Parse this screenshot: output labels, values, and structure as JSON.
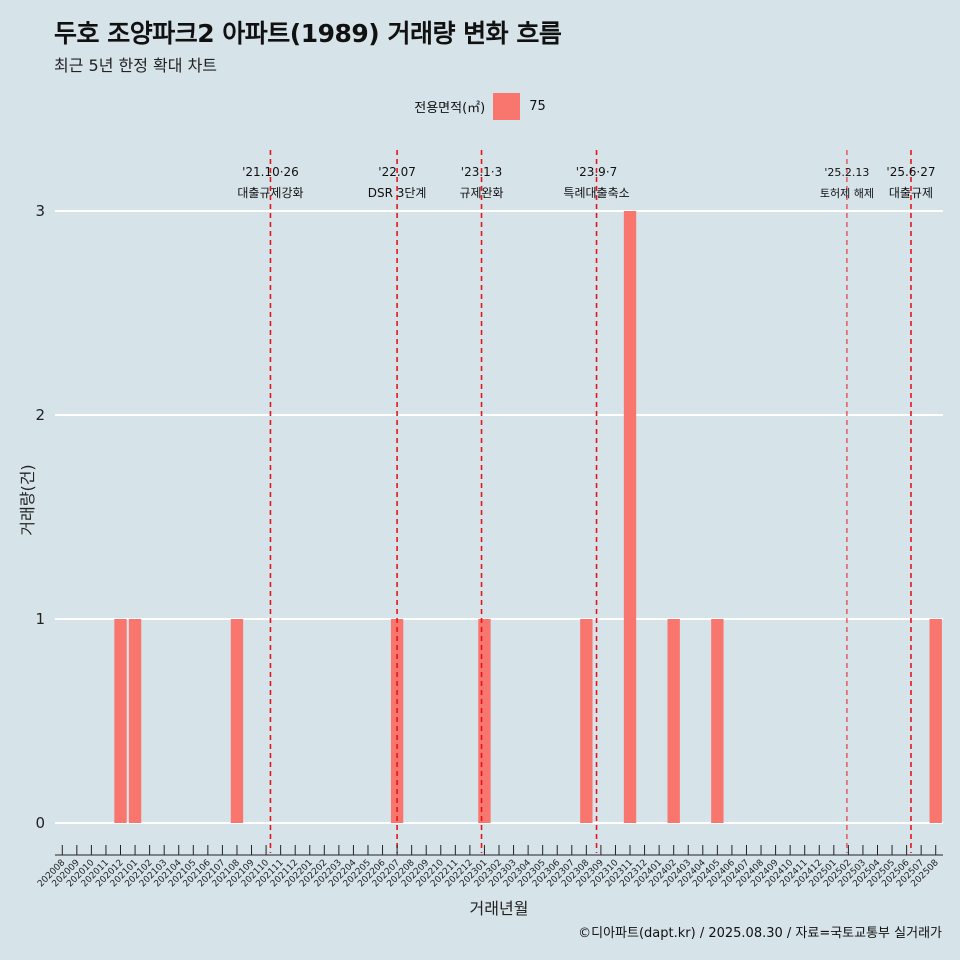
{
  "header": {
    "title": "두호 조양파크2 아파트(1989) 거래량 변화 흐름",
    "subtitle": "최근 5년 한정 확대 차트"
  },
  "legend": {
    "title": "전용면적(㎡)",
    "entries": [
      {
        "label": "75",
        "color": "#f8766d"
      }
    ]
  },
  "caption": "©디아파트(dapt.kr) / 2025.08.30 / 자료=국토교통부 실거래가",
  "chart_data": {
    "type": "bar",
    "xlabel": "거래년월",
    "ylabel": "거래량(건)",
    "ylim": [
      0,
      3
    ],
    "yticks": [
      0,
      1,
      2,
      3
    ],
    "grid": true,
    "legend_position": "top",
    "bar_color": "#f8766d",
    "categories": [
      "202008",
      "202009",
      "202010",
      "202011",
      "202012",
      "202101",
      "202102",
      "202103",
      "202104",
      "202105",
      "202106",
      "202107",
      "202108",
      "202109",
      "202110",
      "202111",
      "202112",
      "202201",
      "202202",
      "202203",
      "202204",
      "202205",
      "202206",
      "202207",
      "202208",
      "202209",
      "202210",
      "202211",
      "202212",
      "202301",
      "202302",
      "202303",
      "202304",
      "202305",
      "202306",
      "202307",
      "202308",
      "202309",
      "202310",
      "202311",
      "202312",
      "202401",
      "202402",
      "202403",
      "202404",
      "202405",
      "202406",
      "202407",
      "202408",
      "202409",
      "202410",
      "202411",
      "202412",
      "202501",
      "202502",
      "202503",
      "202504",
      "202505",
      "202506",
      "202507",
      "202508"
    ],
    "series": [
      {
        "name": "75",
        "values": [
          0,
          0,
          0,
          0,
          1,
          1,
          0,
          0,
          0,
          0,
          0,
          0,
          1,
          0,
          0,
          0,
          0,
          0,
          0,
          0,
          0,
          0,
          0,
          1,
          0,
          0,
          0,
          0,
          0,
          1,
          0,
          0,
          0,
          0,
          0,
          0,
          1,
          0,
          0,
          3,
          0,
          0,
          1,
          0,
          0,
          1,
          0,
          0,
          0,
          0,
          0,
          0,
          0,
          0,
          0,
          0,
          0,
          0,
          0,
          0,
          1
        ]
      }
    ],
    "events": [
      {
        "date": "'21.10·26",
        "label": "대출규제강화",
        "x": "202110",
        "offset": 0.3,
        "small": false
      },
      {
        "date": "'22.07",
        "label": "DSR 3단계",
        "x": "202207",
        "offset": 0.0,
        "small": false
      },
      {
        "date": "'23.1·3",
        "label": "규제완화",
        "x": "202301",
        "offset": -0.2,
        "small": false
      },
      {
        "date": "'23.9·7",
        "label": "특례대출축소",
        "x": "202309",
        "offset": -0.3,
        "small": false
      },
      {
        "date": "'25.2.13",
        "label": "토허제 해제",
        "x": "202502",
        "offset": -0.1,
        "small": true
      },
      {
        "date": "'25.6·27",
        "label": "대출규제",
        "x": "202506",
        "offset": 0.3,
        "small": false
      }
    ]
  }
}
